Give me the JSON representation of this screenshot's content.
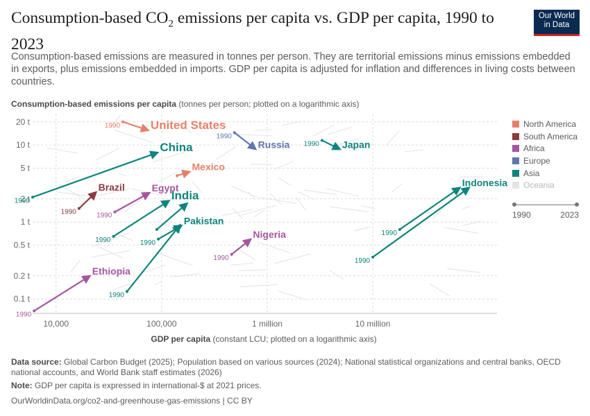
{
  "header": {
    "title_main": "Consumption-based CO",
    "title_sub": "2",
    "title_rest": " emissions per capita vs. GDP per capita, 1990 to 2023",
    "subtitle": "Consumption-based emissions are measured in tonnes per person. They are territorial emissions minus emissions embedded in exports, plus emissions embedded in imports. GDP per capita is adjusted for inflation and differences in living costs between countries.",
    "logo_line1": "Our World",
    "logo_line2": "in Data"
  },
  "axes": {
    "y_label_bold": "Consumption-based emissions per capita",
    "y_label_rest": " (tonnes per person; plotted on a logarithmic axis)",
    "x_label_bold": "GDP per capita",
    "x_label_rest": " (constant LCU; plotted on a logarithmic axis)"
  },
  "legend": {
    "items": [
      {
        "label": "North America",
        "color": "#e6806a",
        "dimmed": false
      },
      {
        "label": "South America",
        "color": "#8c3a3f",
        "dimmed": false
      },
      {
        "label": "Africa",
        "color": "#a4579f",
        "dimmed": false
      },
      {
        "label": "Europe",
        "color": "#5e77ad",
        "dimmed": false
      },
      {
        "label": "Asia",
        "color": "#0f847c",
        "dimmed": false
      },
      {
        "label": "Oceania",
        "color": "#e4e4e4",
        "dimmed": true
      }
    ]
  },
  "timeline": {
    "start": "1990",
    "end": "2023"
  },
  "footer": {
    "source_bold": "Data source:",
    "source_text": " Global Carbon Budget (2025); Population based on various sources (2024); National statistical organizations and central banks, OECD national accounts, and World Bank staff estimates (2026)",
    "note_bold": "Note:",
    "note_text": " GDP per capita is expressed in international-$ at 2021 prices.",
    "url": "OurWorldinData.org/co2-and-greenhouse-gas-emissions | CC BY"
  },
  "chart_data": {
    "type": "scatter",
    "title": "Consumption-based CO2 emissions per capita vs. GDP per capita, 1990 to 2023",
    "xlabel": "GDP per capita (constant LCU; plotted on a logarithmic axis)",
    "ylabel": "Consumption-based emissions per capita (tonnes per person; plotted on a logarithmic axis)",
    "xscale": "log",
    "yscale": "log",
    "xlim": [
      6000,
      150000000
    ],
    "ylim": [
      0.065,
      25
    ],
    "x_ticks": [
      {
        "value": 10000,
        "label": "10,000"
      },
      {
        "value": 100000,
        "label": "100,000"
      },
      {
        "value": 1000000,
        "label": "1 million"
      },
      {
        "value": 10000000,
        "label": "10 million"
      }
    ],
    "y_ticks": [
      {
        "value": 0.1,
        "label": "0.1 t"
      },
      {
        "value": 0.2,
        "label": "0.2 t"
      },
      {
        "value": 0.5,
        "label": "0.5 t"
      },
      {
        "value": 1,
        "label": "1 t"
      },
      {
        "value": 2,
        "label": "2 t"
      },
      {
        "value": 5,
        "label": "5 t"
      },
      {
        "value": 10,
        "label": "10 t"
      },
      {
        "value": 20,
        "label": "20 t"
      }
    ],
    "series": [
      {
        "name": "United States",
        "region": "North America",
        "color": "#e6806a",
        "start_label": "1990",
        "start": [
          43000,
          20
        ],
        "end": [
          75000,
          15.5
        ],
        "label_size": "big"
      },
      {
        "name": "Mexico",
        "region": "North America",
        "color": "#e6806a",
        "start_label": "",
        "start": [
          140000,
          4.0
        ],
        "end": [
          185000,
          4.5
        ],
        "label_size": "mid"
      },
      {
        "name": "China",
        "region": "Asia",
        "color": "#0f847c",
        "start_label": "1990",
        "start": [
          6000,
          2.1
        ],
        "end": [
          92000,
          8.0
        ],
        "label_size": "big"
      },
      {
        "name": "Russia",
        "region": "Europe",
        "color": "#5e77ad",
        "start_label": "1990",
        "start": [
          490000,
          14.5
        ],
        "end": [
          780000,
          8.8
        ],
        "label_size": "mid"
      },
      {
        "name": "Japan",
        "region": "Asia",
        "color": "#0f847c",
        "start_label": "1990",
        "start": [
          3300000,
          11.5
        ],
        "end": [
          4900000,
          8.8
        ],
        "label_size": "mid"
      },
      {
        "name": "Brazil",
        "region": "South America",
        "color": "#8c3a3f",
        "start_label": "1990",
        "start": [
          16500,
          1.5
        ],
        "end": [
          24000,
          2.45
        ],
        "label_size": "mid"
      },
      {
        "name": "Egypt",
        "region": "Africa",
        "color": "#a4579f",
        "start_label": "1990",
        "start": [
          36000,
          1.35
        ],
        "end": [
          77000,
          2.4
        ],
        "label_size": "mid"
      },
      {
        "name": "India",
        "region": "Asia",
        "color": "#0f847c",
        "start_label": "1990",
        "start": [
          35000,
          0.65
        ],
        "end": [
          118000,
          1.9
        ],
        "label_size": "big"
      },
      {
        "name": "India-secondary",
        "region": "Asia",
        "color": "#0f847c",
        "start_label": "",
        "start": [
          90000,
          0.8
        ],
        "end": [
          175000,
          1.75
        ],
        "label_size": "none"
      },
      {
        "name": "Pakistan",
        "region": "Asia",
        "color": "#0f847c",
        "start_label": "1990",
        "start": [
          93000,
          0.6
        ],
        "end": [
          155000,
          0.9
        ],
        "label_size": "mid"
      },
      {
        "name": "Pakistan-secondary",
        "region": "Asia",
        "color": "#0f847c",
        "start_label": "1990",
        "start": [
          47000,
          0.125
        ],
        "end": [
          150000,
          0.92
        ],
        "label_size": "none"
      },
      {
        "name": "Nigeria",
        "region": "Africa",
        "color": "#a4579f",
        "start_label": "1990",
        "start": [
          460000,
          0.38
        ],
        "end": [
          700000,
          0.6
        ],
        "label_size": "mid"
      },
      {
        "name": "Ethiopia",
        "region": "Africa",
        "color": "#a4579f",
        "start_label": "1990",
        "start": [
          6200,
          0.07
        ],
        "end": [
          21000,
          0.2
        ],
        "label_size": "mid"
      },
      {
        "name": "Indonesia",
        "region": "Asia",
        "color": "#0f847c",
        "start_label": "1990",
        "start": [
          18000000,
          0.8
        ],
        "end": [
          67000000,
          2.8
        ],
        "label_size": "mid"
      },
      {
        "name": "Indonesia-secondary",
        "region": "Asia",
        "color": "#0f847c",
        "start_label": "1990",
        "start": [
          10000000,
          0.35
        ],
        "end": [
          82000000,
          2.8
        ],
        "label_size": "none"
      }
    ]
  }
}
